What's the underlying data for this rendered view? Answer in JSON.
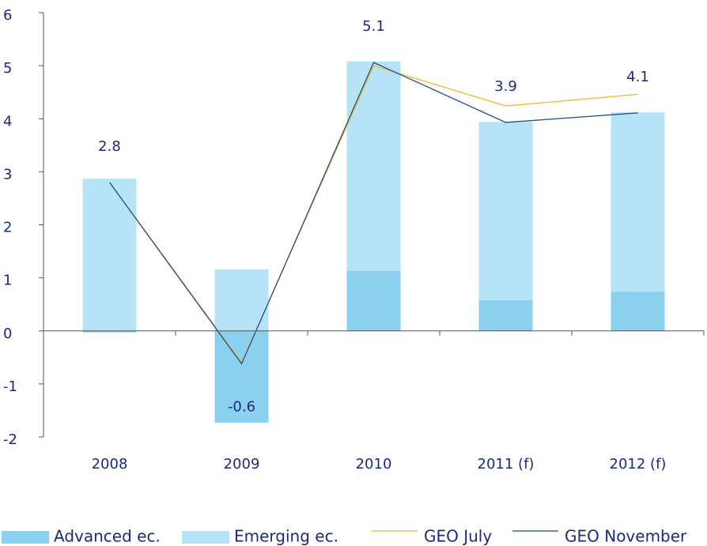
{
  "chart_data": {
    "type": "bar",
    "stacked": true,
    "categories": [
      "2008",
      "2009",
      "2010",
      "2011 (f)",
      "2012 (f)"
    ],
    "series": [
      {
        "name": "Advanced ec.",
        "type": "bar",
        "color": "#8bd1ef",
        "values": [
          -0.03,
          -1.73,
          1.13,
          0.58,
          0.74
        ]
      },
      {
        "name": "Emerging ec.",
        "type": "bar",
        "color": "#b6e4f6",
        "values": [
          2.87,
          1.16,
          3.95,
          3.36,
          3.38
        ]
      },
      {
        "name": "GEO July",
        "type": "line",
        "color": "#f2b82e",
        "values": [
          2.8,
          -0.6,
          5.0,
          4.24,
          4.46
        ]
      },
      {
        "name": "GEO November",
        "type": "line",
        "color": "#1f4f8f",
        "values": [
          2.8,
          -0.62,
          5.06,
          3.93,
          4.11
        ],
        "value_labels": [
          "2.8",
          "-0.6",
          "5.1",
          "3.9",
          "4.1"
        ]
      }
    ],
    "ylim": [
      -2,
      6
    ],
    "yticks": [
      -2,
      -1,
      0,
      1,
      2,
      3,
      4,
      5,
      6
    ]
  }
}
